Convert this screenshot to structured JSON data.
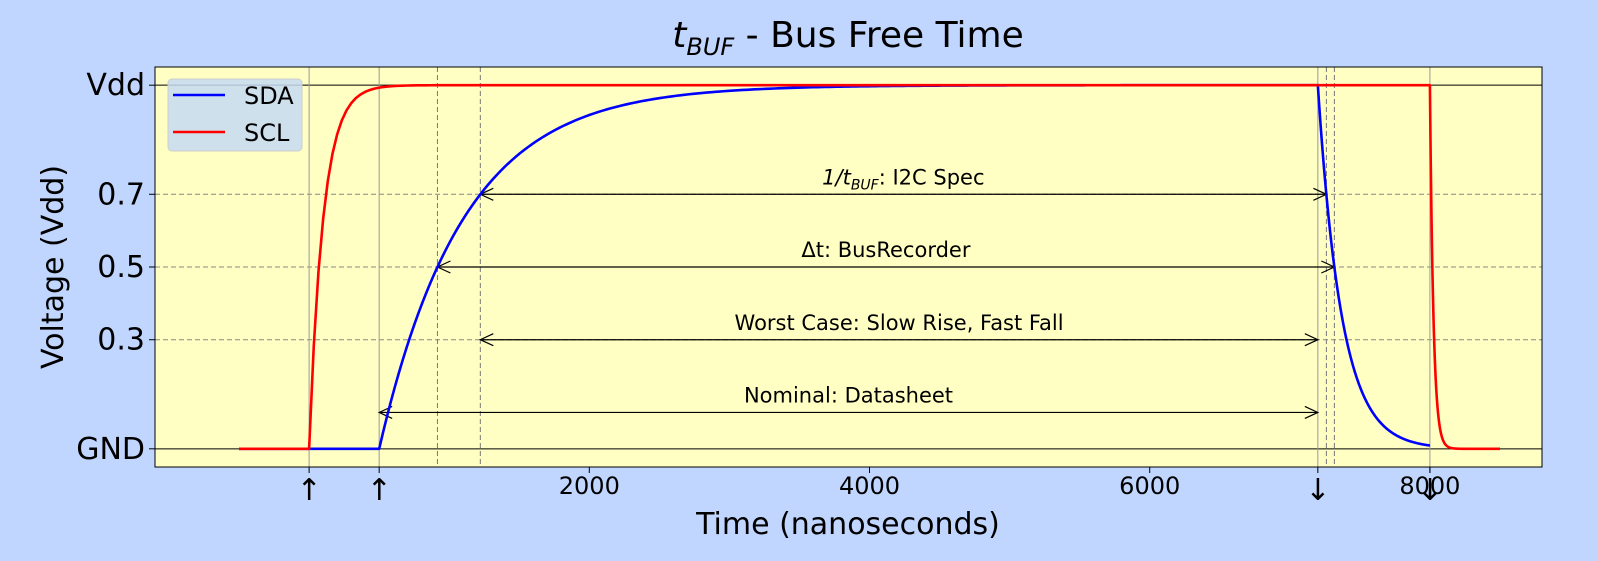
{
  "chart_data": {
    "type": "line",
    "title_main": "t",
    "title_sub": "BUF",
    "title_rest": " - Bus Free Time",
    "xlabel": "Time (nanoseconds)",
    "ylabel": "Voltage (Vdd)",
    "xlim": [
      -1100,
      8800
    ],
    "ylim": [
      -0.05,
      1.05
    ],
    "xticks": [
      2000,
      4000,
      6000,
      8000
    ],
    "xtick_labels": [
      "2000",
      "4000",
      "6000",
      "8000"
    ],
    "yticks": [
      0,
      0.3,
      0.5,
      0.7,
      1.0
    ],
    "ytick_labels": [
      "GND",
      "0.3",
      "0.5",
      "0.7",
      "Vdd"
    ],
    "edge_markers": [
      {
        "x": 0,
        "symbol": "↑"
      },
      {
        "x": 500,
        "symbol": "↑"
      },
      {
        "x": 7200,
        "symbol": "↓"
      },
      {
        "x": 8000,
        "symbol": "↓"
      }
    ],
    "background": "#ffffc4",
    "figure_background": "#c0d6ff",
    "legend_position": "top-left",
    "grid": "dashed at threshold levels",
    "series": [
      {
        "name": "SDA",
        "color": "#0000ff",
        "segments": [
          {
            "kind": "const",
            "x0": -500,
            "x1": 500,
            "y": 0
          },
          {
            "kind": "rise",
            "x0": 500,
            "x1": 7200,
            "tau": 600
          },
          {
            "kind": "fall",
            "x0": 7200,
            "x1": 8000,
            "tau": 170
          }
        ]
      },
      {
        "name": "SCL",
        "color": "#ff0000",
        "segments": [
          {
            "kind": "const",
            "x0": -500,
            "x1": 0,
            "y": 0
          },
          {
            "kind": "rise",
            "x0": 0,
            "x1": 8000,
            "tau": 100
          },
          {
            "kind": "fall",
            "x0": 8000,
            "x1": 8500,
            "tau": 25
          }
        ]
      }
    ],
    "vertical_lines": [
      {
        "x": 0,
        "style": "solid"
      },
      {
        "x": 500,
        "style": "solid"
      },
      {
        "x": 7200,
        "style": "solid"
      },
      {
        "x": 8000,
        "style": "solid"
      },
      {
        "x": 916,
        "style": "dashed"
      },
      {
        "x": 1222,
        "style": "dashed"
      },
      {
        "x": 7261,
        "style": "dashed"
      },
      {
        "x": 7318,
        "style": "dashed"
      }
    ],
    "annotations": [
      {
        "label_pre": "1/t",
        "label_sub": "BUF",
        "label_post": ": I2C Spec",
        "y": 0.7,
        "x_start": 1222,
        "x_end": 7261,
        "label_y": 0.73
      },
      {
        "label_pre": "Δt: BusRecorder",
        "label_sub": "",
        "label_post": "",
        "y": 0.5,
        "x_start": 916,
        "x_end": 7318,
        "label_y": 0.53
      },
      {
        "label_pre": "Worst Case: Slow Rise, Fast Fall",
        "label_sub": "",
        "label_post": "",
        "y": 0.3,
        "x_start": 1222,
        "x_end": 7200,
        "label_y": 0.33
      },
      {
        "label_pre": "Nominal: Datasheet",
        "label_sub": "",
        "label_post": "",
        "y": 0.1,
        "x_start": 500,
        "x_end": 7200,
        "label_y": 0.13
      }
    ]
  }
}
